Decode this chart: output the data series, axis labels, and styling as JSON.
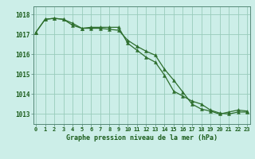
{
  "title": "Graphe pression niveau de la mer (hPa)",
  "bg_color": "#cceee8",
  "grid_color": "#99ccbb",
  "line_color": "#2d6e2d",
  "marker_color": "#2d6e2d",
  "ylim": [
    1012.5,
    1018.4
  ],
  "yticks": [
    1013,
    1014,
    1015,
    1016,
    1017,
    1018
  ],
  "xlim": [
    -0.3,
    23.3
  ],
  "xticks": [
    0,
    1,
    2,
    3,
    4,
    5,
    6,
    7,
    8,
    9,
    10,
    11,
    12,
    13,
    14,
    15,
    16,
    17,
    18,
    19,
    20,
    21,
    22,
    23
  ],
  "series1_x": [
    0,
    1,
    2,
    3,
    4,
    5,
    6,
    7,
    8,
    9,
    10,
    11,
    12,
    13,
    14,
    15,
    16,
    17,
    18,
    19,
    20,
    21,
    22,
    23
  ],
  "series1_y": [
    1017.1,
    1017.75,
    1017.8,
    1017.75,
    1017.55,
    1017.3,
    1017.3,
    1017.3,
    1017.25,
    1017.2,
    1016.7,
    1016.4,
    1016.15,
    1015.95,
    1015.25,
    1014.7,
    1014.1,
    1013.5,
    1013.25,
    1013.15,
    1013.0,
    1013.1,
    1013.2,
    1013.15
  ],
  "series2_x": [
    0,
    1,
    2,
    3,
    4,
    5,
    6,
    7,
    8,
    9,
    10,
    11,
    12,
    13,
    14,
    15,
    16,
    17,
    18,
    19,
    20,
    21,
    22,
    23
  ],
  "series2_y": [
    1017.1,
    1017.75,
    1017.8,
    1017.75,
    1017.45,
    1017.3,
    1017.35,
    1017.35,
    1017.35,
    1017.35,
    1016.55,
    1016.2,
    1015.85,
    1015.6,
    1014.95,
    1014.15,
    1013.9,
    1013.65,
    1013.5,
    1013.2,
    1013.05,
    1013.0,
    1013.1,
    1013.1
  ]
}
